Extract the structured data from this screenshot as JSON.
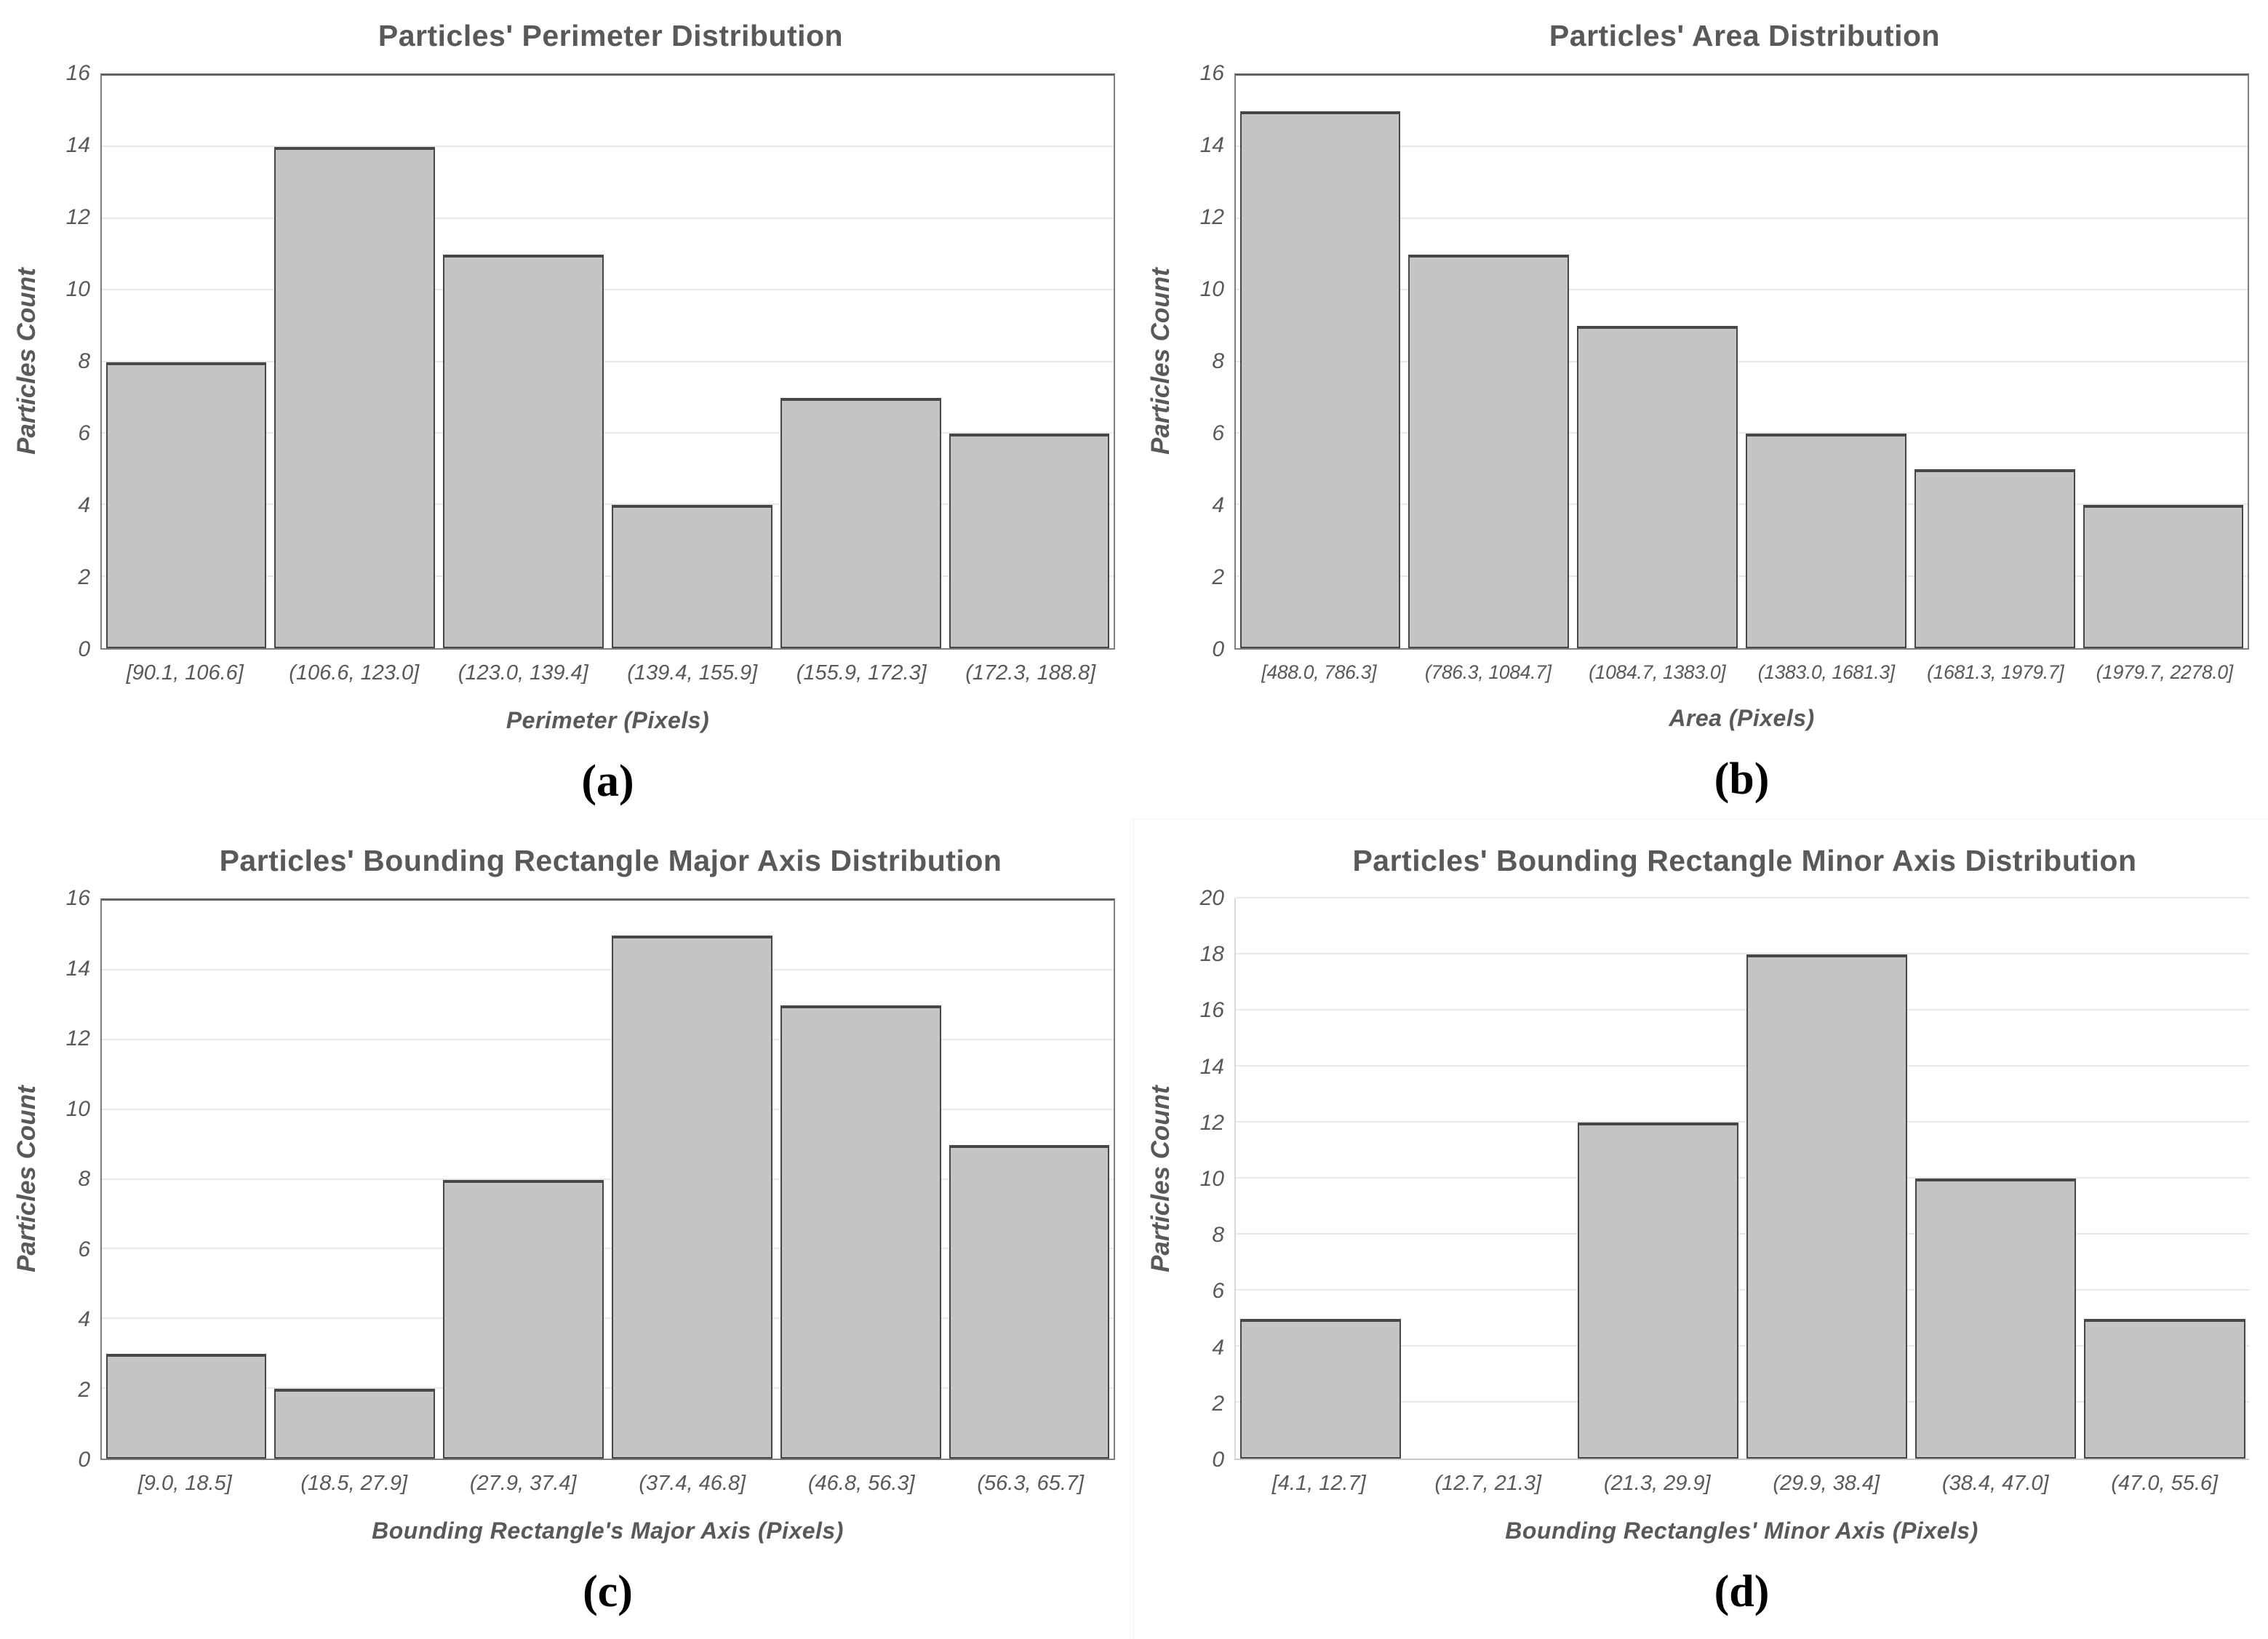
{
  "figure": {
    "panel_labels": [
      "(a)",
      "(b)",
      "(c)",
      "(d)"
    ],
    "colors": {
      "bar_fill": "#c5c5c5",
      "bar_border": "#474747",
      "text": "#595959",
      "gridline": "#e9e9e9",
      "plot_border": "#7f7f7f",
      "panel_letter": "#000000"
    }
  },
  "chart_data": [
    {
      "type": "bar",
      "title": "Particles' Perimeter Distribution",
      "xlabel": "Perimeter (Pixels)",
      "ylabel": "Particles Count",
      "categories": [
        "[90.1, 106.6]",
        "(106.6, 123.0]",
        "(123.0, 139.4]",
        "(139.4, 155.9]",
        "(155.9, 172.3]",
        "(172.3, 188.8]"
      ],
      "values": [
        8,
        14,
        11,
        4,
        7,
        6
      ],
      "ylim": [
        0,
        16
      ],
      "ytick_step": 2,
      "grid": "horizontal",
      "border": "boxed",
      "panel_label": "(a)"
    },
    {
      "type": "bar",
      "title": "Particles' Area Distribution",
      "xlabel": "Area (Pixels)",
      "ylabel": "Particles Count",
      "categories": [
        "[488.0, 786.3]",
        "(786.3, 1084.7]",
        "(1084.7, 1383.0]",
        "(1383.0, 1681.3]",
        "(1681.3, 1979.7]",
        "(1979.7, 2278.0]"
      ],
      "values": [
        15,
        11,
        9,
        6,
        5,
        4
      ],
      "ylim": [
        0,
        16
      ],
      "ytick_step": 2,
      "grid": "horizontal",
      "border": "boxed",
      "panel_label": "(b)"
    },
    {
      "type": "bar",
      "title": "Particles' Bounding Rectangle Major Axis Distribution",
      "xlabel": "Bounding Rectangle's Major Axis (Pixels)",
      "ylabel": "Particles Count",
      "categories": [
        "[9.0, 18.5]",
        "(18.5, 27.9]",
        "(27.9, 37.4]",
        "(37.4, 46.8]",
        "(46.8, 56.3]",
        "(56.3, 65.7]"
      ],
      "values": [
        3,
        2,
        8,
        15,
        13,
        9
      ],
      "ylim": [
        0,
        16
      ],
      "ytick_step": 2,
      "grid": "horizontal",
      "border": "boxed",
      "panel_label": "(c)"
    },
    {
      "type": "bar",
      "title": "Particles' Bounding Rectangle Minor Axis Distribution",
      "xlabel": "Bounding Rectangles' Minor Axis (Pixels)",
      "ylabel": "Particles Count",
      "categories": [
        "[4.1, 12.7]",
        "(12.7, 21.3]",
        "(21.3, 29.9]",
        "(29.9, 38.4]",
        "(38.4, 47.0]",
        "(47.0, 55.6]"
      ],
      "values": [
        5,
        0,
        12,
        18,
        10,
        5
      ],
      "ylim": [
        0,
        20
      ],
      "ytick_step": 2,
      "grid": "horizontal",
      "border": "open",
      "panel_label": "(d)"
    }
  ]
}
